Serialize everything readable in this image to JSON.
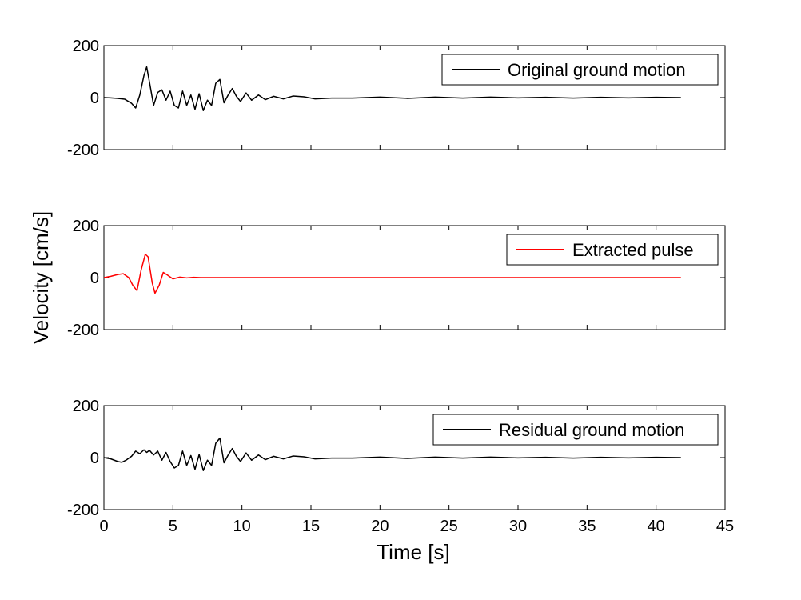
{
  "figure": {
    "ylabel": "Velocity [cm/s]",
    "xlabel": "Time [s]",
    "colors": {
      "axis": "#000000",
      "legend_border": "#000000",
      "background": "#ffffff"
    }
  },
  "chart_data": [
    {
      "type": "line",
      "title": "",
      "xlim": [
        0,
        45
      ],
      "ylim": [
        -200,
        200
      ],
      "yticks": [
        200,
        0,
        -200
      ],
      "xticks": [],
      "grid": false,
      "legend_position": "top-right",
      "series": [
        {
          "name": "Original ground motion",
          "color": "#000000",
          "x": [
            0,
            0.5,
            1.0,
            1.5,
            2.0,
            2.3,
            2.6,
            2.9,
            3.1,
            3.3,
            3.6,
            3.9,
            4.2,
            4.5,
            4.8,
            5.1,
            5.4,
            5.7,
            6.0,
            6.3,
            6.6,
            6.9,
            7.2,
            7.5,
            7.8,
            8.1,
            8.4,
            8.7,
            9.0,
            9.3,
            9.6,
            9.9,
            10.3,
            10.7,
            11.2,
            11.7,
            12.3,
            13.0,
            13.7,
            14.5,
            15.3,
            16.5,
            18,
            20,
            22,
            24,
            26,
            28,
            30,
            32,
            34,
            36,
            38,
            40,
            41.8
          ],
          "y": [
            0,
            -1,
            -3,
            -6,
            -22,
            -40,
            10,
            85,
            118,
            60,
            -30,
            20,
            30,
            -10,
            25,
            -30,
            -40,
            25,
            -30,
            10,
            -45,
            15,
            -50,
            -10,
            -30,
            55,
            70,
            -20,
            10,
            35,
            5,
            -15,
            18,
            -10,
            10,
            -8,
            5,
            -5,
            6,
            3,
            -5,
            -2,
            -2,
            2,
            -3,
            2,
            -2,
            2,
            -1,
            1,
            -2,
            1,
            -1,
            1,
            0
          ]
        }
      ]
    },
    {
      "type": "line",
      "title": "",
      "xlim": [
        0,
        45
      ],
      "ylim": [
        -200,
        200
      ],
      "yticks": [
        200,
        0,
        -200
      ],
      "xticks": [],
      "grid": false,
      "legend_position": "top-right",
      "series": [
        {
          "name": "Extracted pulse",
          "color": "#ff0000",
          "x": [
            0,
            0.5,
            1.0,
            1.4,
            1.8,
            2.1,
            2.4,
            2.7,
            3.0,
            3.2,
            3.5,
            3.7,
            4.0,
            4.3,
            4.6,
            5.0,
            5.5,
            6.0,
            6.5,
            7.0,
            8,
            10,
            15,
            20,
            25,
            30,
            35,
            41.8
          ],
          "y": [
            0,
            5,
            12,
            15,
            0,
            -30,
            -50,
            30,
            90,
            80,
            -20,
            -60,
            -30,
            20,
            10,
            -5,
            2,
            -1,
            1,
            0,
            0,
            0,
            0,
            0,
            0,
            0,
            0,
            0
          ]
        }
      ]
    },
    {
      "type": "line",
      "title": "",
      "xlim": [
        0,
        45
      ],
      "ylim": [
        -200,
        200
      ],
      "yticks": [
        200,
        0,
        -200
      ],
      "xticks": [
        0,
        5,
        10,
        15,
        20,
        25,
        30,
        35,
        40,
        45
      ],
      "grid": false,
      "legend_position": "top-right",
      "series": [
        {
          "name": "Residual ground motion",
          "color": "#000000",
          "x": [
            0,
            0.5,
            1.0,
            1.3,
            1.6,
            2.0,
            2.3,
            2.6,
            2.9,
            3.1,
            3.3,
            3.6,
            3.9,
            4.2,
            4.5,
            4.8,
            5.1,
            5.4,
            5.7,
            6.0,
            6.3,
            6.6,
            6.9,
            7.2,
            7.5,
            7.8,
            8.1,
            8.4,
            8.7,
            9.0,
            9.3,
            9.6,
            9.9,
            10.3,
            10.7,
            11.2,
            11.7,
            12.3,
            13.0,
            13.7,
            14.5,
            15.3,
            16.5,
            18,
            20,
            22,
            24,
            26,
            28,
            30,
            32,
            34,
            36,
            38,
            40,
            41.8
          ],
          "y": [
            0,
            -5,
            -15,
            -18,
            -10,
            5,
            25,
            15,
            30,
            20,
            28,
            10,
            25,
            -10,
            20,
            -15,
            -40,
            -30,
            25,
            -30,
            8,
            -45,
            12,
            -50,
            -10,
            -30,
            55,
            75,
            -20,
            10,
            35,
            5,
            -15,
            18,
            -10,
            10,
            -8,
            5,
            -5,
            6,
            3,
            -5,
            -2,
            -2,
            2,
            -3,
            2,
            -2,
            2,
            -1,
            1,
            -2,
            1,
            -1,
            1,
            0
          ]
        }
      ]
    }
  ]
}
